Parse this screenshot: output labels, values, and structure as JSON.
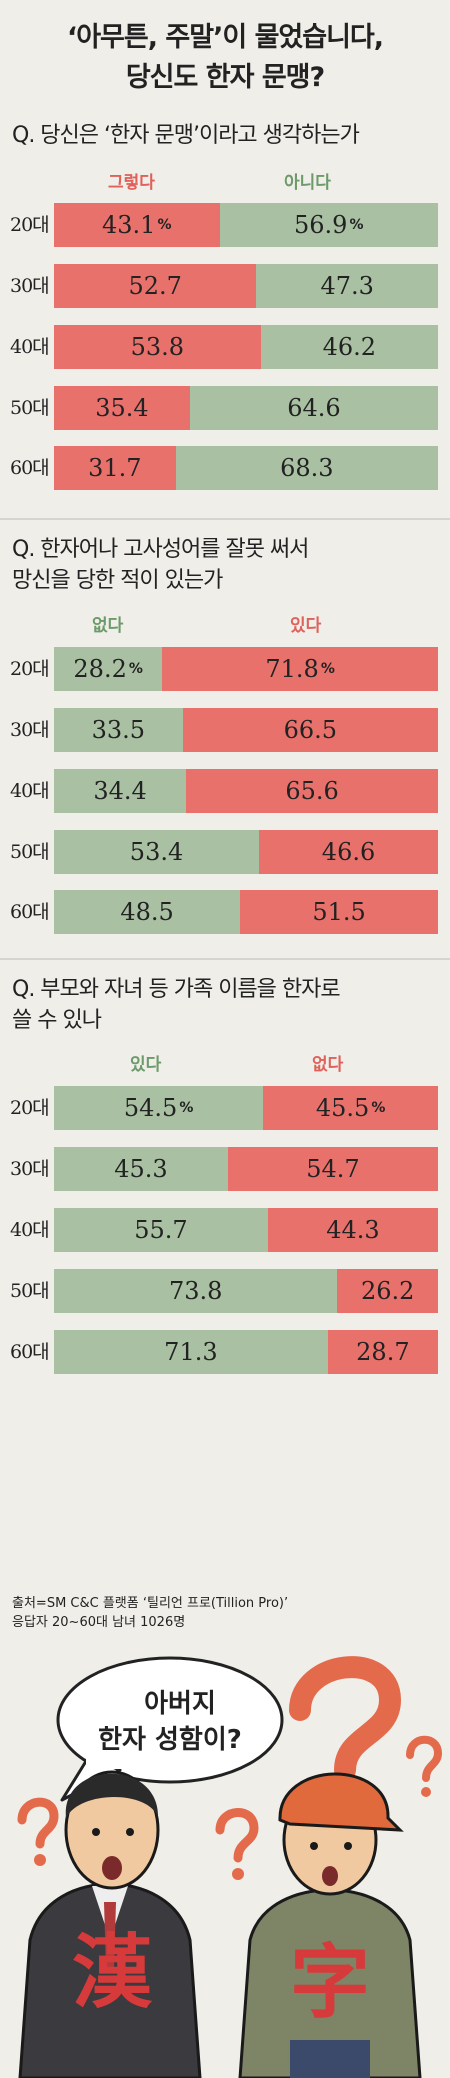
{
  "title": {
    "line1": "‘아무튼, 주말’이 물었습니다,",
    "line2": "당신도 한자 문맹?"
  },
  "colors": {
    "red": "#e9716c",
    "green": "#a9c0a3",
    "red_text": "#e0605a",
    "green_text": "#6c9a6a"
  },
  "percent_sign": "%",
  "chart_data": [
    {
      "type": "bar",
      "stacked": true,
      "question_line1": "Q. 당신은 ‘한자 문맹’이라고 생각하는가",
      "question_line2": "",
      "categories": [
        "20대",
        "30대",
        "40대",
        "50대",
        "60대"
      ],
      "series": [
        {
          "name": "그렇다",
          "color": "red",
          "values": [
            43.1,
            52.7,
            53.8,
            35.4,
            31.7
          ]
        },
        {
          "name": "아니다",
          "color": "green",
          "values": [
            56.9,
            47.3,
            46.2,
            64.6,
            68.3
          ]
        }
      ]
    },
    {
      "type": "bar",
      "stacked": true,
      "question_line1": "Q. 한자어나 고사성어를 잘못 써서",
      "question_line2": "망신을 당한 적이 있는가",
      "categories": [
        "20대",
        "30대",
        "40대",
        "50대",
        "60대"
      ],
      "series": [
        {
          "name": "없다",
          "color": "green",
          "values": [
            28.2,
            33.5,
            34.4,
            53.4,
            48.5
          ]
        },
        {
          "name": "있다",
          "color": "red",
          "values": [
            71.8,
            66.5,
            65.6,
            46.6,
            51.5
          ]
        }
      ]
    },
    {
      "type": "bar",
      "stacked": true,
      "question_line1": "Q. 부모와 자녀 등 가족 이름을 한자로",
      "question_line2": "쓸 수 있나",
      "categories": [
        "20대",
        "30대",
        "40대",
        "50대",
        "60대"
      ],
      "series": [
        {
          "name": "있다",
          "color": "green",
          "values": [
            54.5,
            45.3,
            55.7,
            73.8,
            71.3
          ]
        },
        {
          "name": "없다",
          "color": "red",
          "values": [
            45.5,
            54.7,
            44.3,
            26.2,
            28.7
          ]
        }
      ]
    }
  ],
  "source": {
    "line1": "출처=SM C&C 플랫폼 ‘틸리언 프로(Tillion Pro)’",
    "line2": "응답자 20~60대 남녀 1026명"
  },
  "cartoon": {
    "speech_line1": "아버지",
    "speech_line2": "한자 성함이?",
    "left_char": "漢",
    "right_char": "字"
  }
}
